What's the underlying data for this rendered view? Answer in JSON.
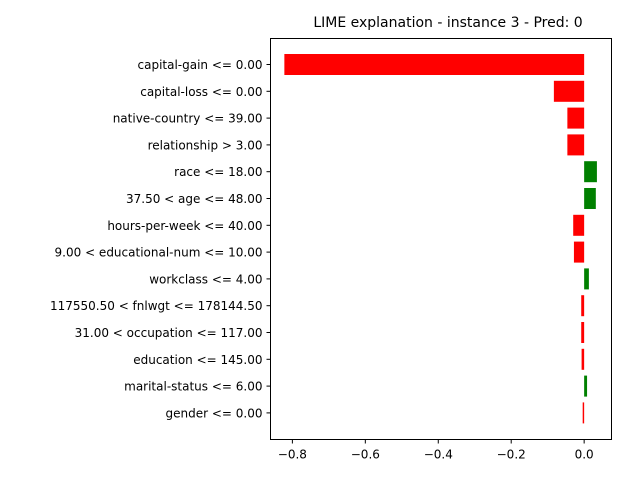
{
  "chart_data": {
    "type": "bar",
    "orientation": "horizontal",
    "title": "LIME explanation - instance 3 - Pred: 0",
    "xlabel": "",
    "ylabel": "",
    "xlim": [
      -0.86,
      0.075
    ],
    "xticks": [
      -0.8,
      -0.6,
      -0.4,
      -0.2,
      0.0
    ],
    "xtick_labels": [
      "−0.8",
      "−0.6",
      "−0.4",
      "−0.2",
      "0.0"
    ],
    "grid": false,
    "legend": "none",
    "positive_color": "#008000",
    "negative_color": "#ff0000",
    "categories": [
      "capital-gain <= 0.00",
      "capital-loss <= 0.00",
      "native-country <= 39.00",
      "relationship > 3.00",
      "race <= 18.00",
      "37.50 < age <= 48.00",
      "hours-per-week <= 40.00",
      "9.00 < educational-num <= 10.00",
      "workclass <= 4.00",
      "117550.50 < fnlwgt <= 178144.50",
      "31.00 < occupation <= 117.00",
      "education <= 145.00",
      "marital-status <= 6.00",
      "gender <= 0.00"
    ],
    "values": [
      -0.822,
      -0.083,
      -0.046,
      -0.046,
      0.035,
      0.032,
      -0.03,
      -0.028,
      0.013,
      -0.008,
      -0.008,
      -0.007,
      0.008,
      -0.004
    ]
  }
}
